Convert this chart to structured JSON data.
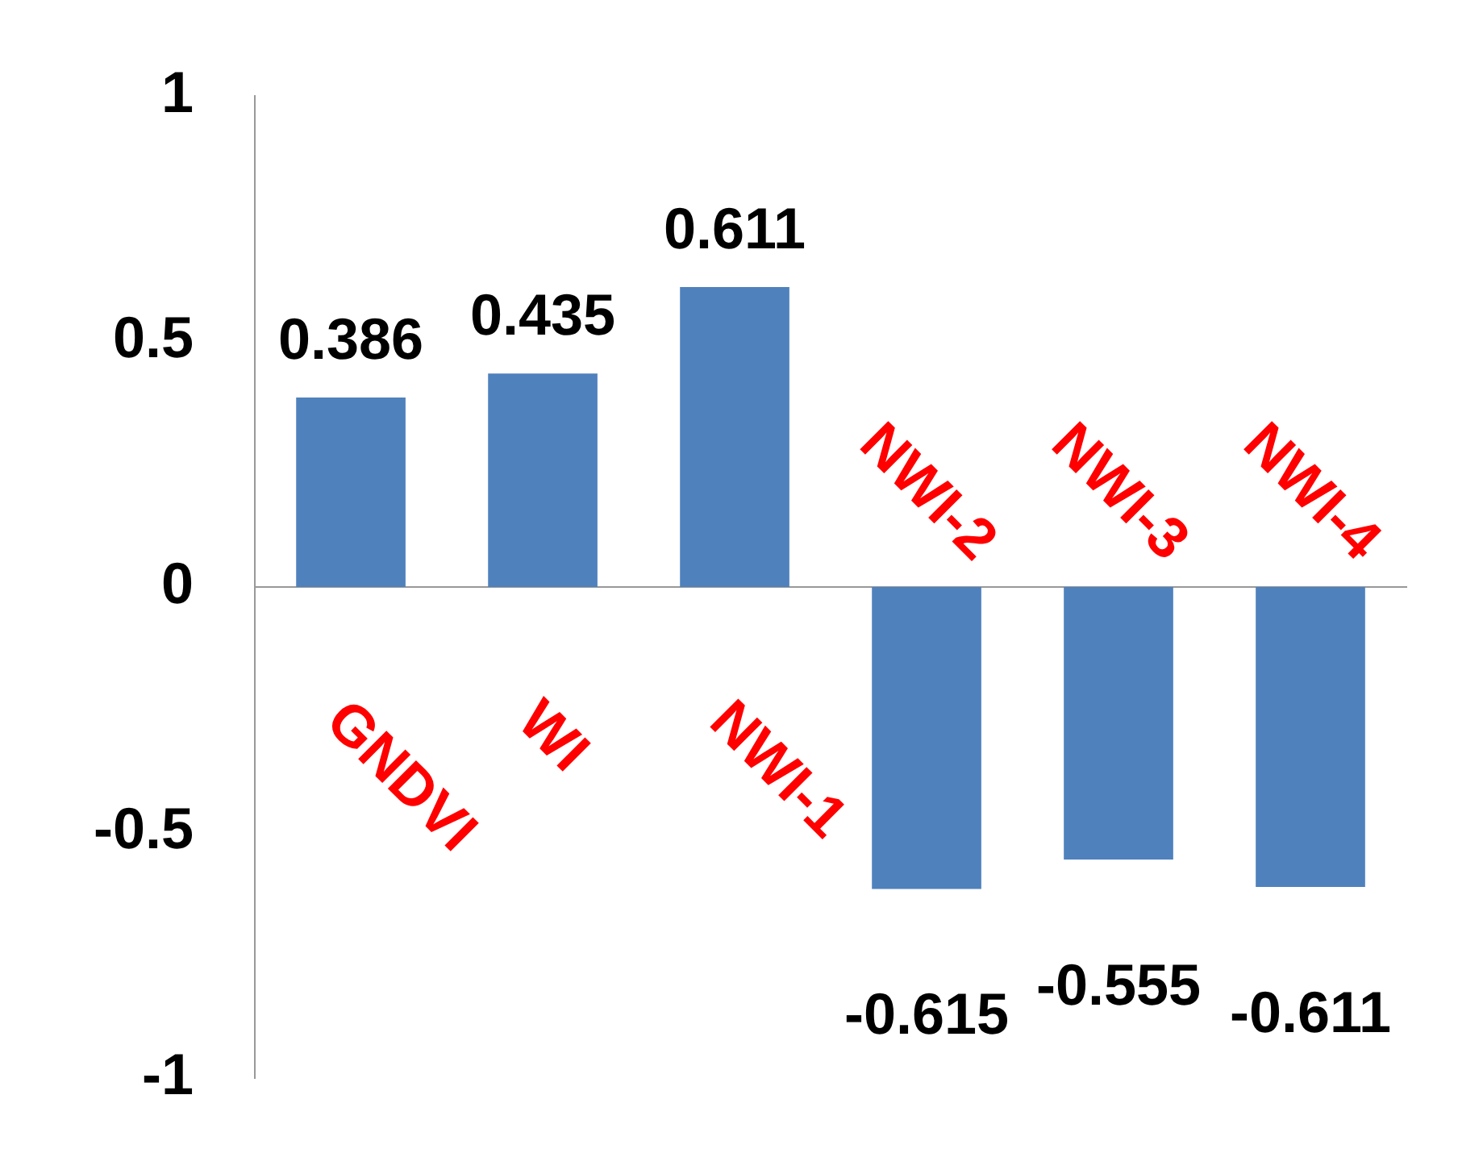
{
  "chart_data": {
    "type": "bar",
    "categories": [
      "GNDVI",
      "WI",
      "NWI-1",
      "NWI-2",
      "NWI-3",
      "NWI-4"
    ],
    "values": [
      0.386,
      0.435,
      0.611,
      -0.615,
      -0.555,
      -0.611
    ],
    "color": "#4f81bd",
    "ylim": [
      -1,
      1
    ],
    "yticks": [
      -1,
      -0.5,
      0,
      0.5,
      1
    ],
    "grid": false,
    "legend": false,
    "data_labels": true
  }
}
